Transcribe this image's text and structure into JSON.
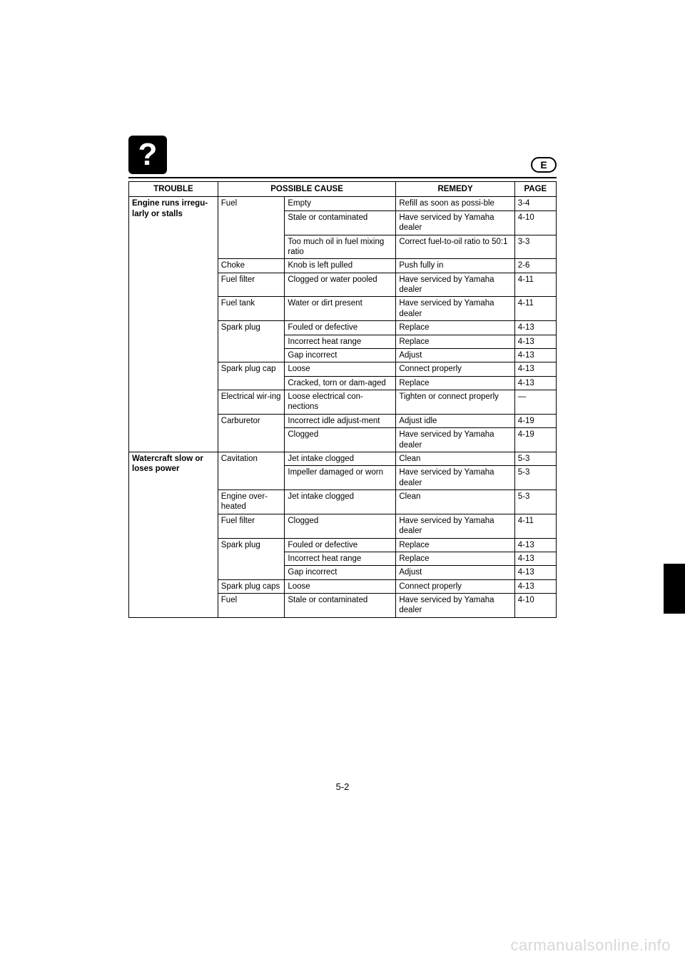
{
  "header": {
    "icon_glyph": "?",
    "lang_badge": "E"
  },
  "columns": {
    "trouble": "TROUBLE",
    "possible_cause": "POSSIBLE CAUSE",
    "remedy": "REMEDY",
    "page": "PAGE"
  },
  "sections": [
    {
      "trouble": "Engine runs irregu-larly or stalls",
      "rows": [
        {
          "cause1": "Fuel",
          "cause1_span": 3,
          "cause2": "Empty",
          "remedy": "Refill as soon as possi-ble",
          "page": "3-4"
        },
        {
          "cause2": "Stale or contaminated",
          "remedy": "Have serviced by Yamaha dealer",
          "page": "4-10"
        },
        {
          "cause2": "Too much oil in fuel mixing ratio",
          "remedy": "Correct fuel-to-oil ratio to 50:1",
          "page": "3-3"
        },
        {
          "cause1": "Choke",
          "cause1_span": 1,
          "cause2": "Knob is left pulled",
          "remedy": "Push fully in",
          "page": "2-6"
        },
        {
          "cause1": "Fuel filter",
          "cause1_span": 1,
          "cause2": "Clogged or water pooled",
          "remedy": "Have serviced by Yamaha dealer",
          "page": "4-11"
        },
        {
          "cause1": "Fuel tank",
          "cause1_span": 1,
          "cause2": "Water or dirt present",
          "remedy": "Have serviced by Yamaha dealer",
          "page": "4-11"
        },
        {
          "cause1": "Spark plug",
          "cause1_span": 3,
          "cause2": "Fouled or defective",
          "remedy": "Replace",
          "page": "4-13"
        },
        {
          "cause2": "Incorrect heat range",
          "remedy": "Replace",
          "page": "4-13"
        },
        {
          "cause2": "Gap incorrect",
          "remedy": "Adjust",
          "page": "4-13"
        },
        {
          "cause1": "Spark plug cap",
          "cause1_span": 2,
          "cause2": "Loose",
          "remedy": "Connect properly",
          "page": "4-13"
        },
        {
          "cause2": "Cracked, torn or dam-aged",
          "remedy": "Replace",
          "page": "4-13"
        },
        {
          "cause1": "Electrical wir-ing",
          "cause1_span": 1,
          "cause2": "Loose electrical con-nections",
          "remedy": "Tighten or connect properly",
          "page": "—"
        },
        {
          "cause1": "Carburetor",
          "cause1_span": 2,
          "cause2": "Incorrect idle adjust-ment",
          "remedy": "Adjust idle",
          "page": "4-19"
        },
        {
          "cause2": "Clogged",
          "remedy": "Have serviced by Yamaha dealer",
          "page": "4-19"
        }
      ]
    },
    {
      "trouble": "Watercraft slow or loses power",
      "rows": [
        {
          "cause1": "Cavitation",
          "cause1_span": 2,
          "cause2": "Jet intake clogged",
          "remedy": "Clean",
          "page": "5-3"
        },
        {
          "cause2": "Impeller damaged or worn",
          "remedy": "Have serviced by Yamaha dealer",
          "page": "5-3"
        },
        {
          "cause1": "Engine over-heated",
          "cause1_span": 1,
          "cause2": "Jet intake clogged",
          "remedy": "Clean",
          "page": "5-3"
        },
        {
          "cause1": "Fuel filter",
          "cause1_span": 1,
          "cause2": "Clogged",
          "remedy": "Have serviced by Yamaha dealer",
          "page": "4-11"
        },
        {
          "cause1": "Spark plug",
          "cause1_span": 3,
          "cause2": "Fouled or defective",
          "remedy": "Replace",
          "page": "4-13"
        },
        {
          "cause2": "Incorrect heat range",
          "remedy": "Replace",
          "page": "4-13"
        },
        {
          "cause2": "Gap incorrect",
          "remedy": "Adjust",
          "page": "4-13"
        },
        {
          "cause1": "Spark plug caps",
          "cause1_span": 1,
          "cause2": "Loose",
          "remedy": "Connect properly",
          "page": "4-13"
        },
        {
          "cause1": "Fuel",
          "cause1_span": 1,
          "cause2": "Stale or contaminated",
          "remedy": "Have serviced by Yamaha dealer",
          "page": "4-10"
        }
      ]
    }
  ],
  "page_number": "5-2",
  "watermark": "carmanualsonline.info",
  "styling": {
    "font_size_pt": 11.5,
    "border_color": "#000000",
    "background": "#ffffff",
    "watermark_color": "#d7d7d7",
    "side_tab_color": "#000000"
  }
}
